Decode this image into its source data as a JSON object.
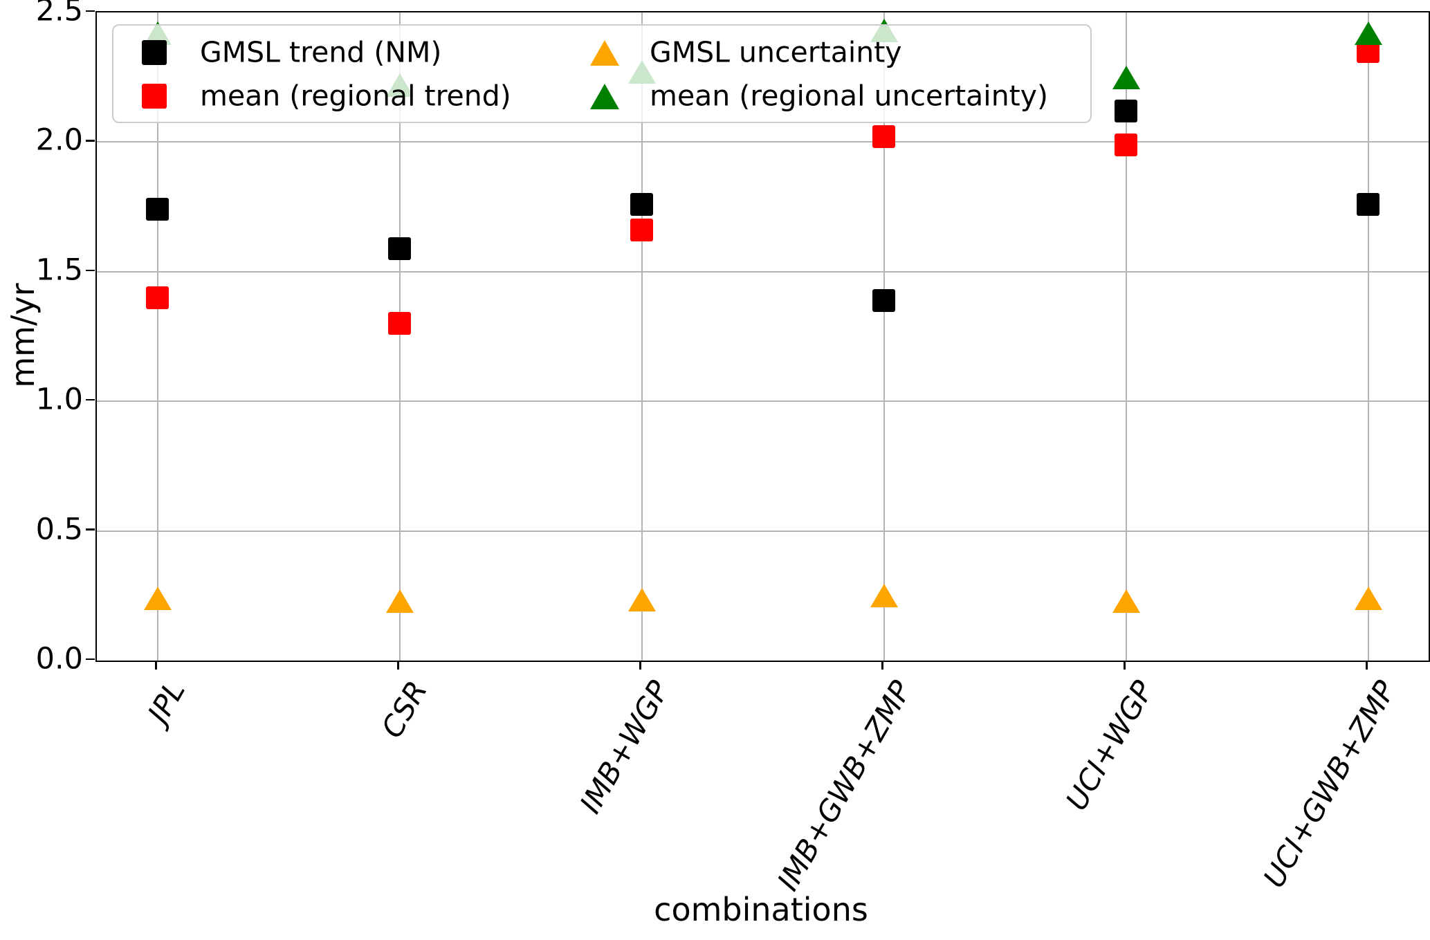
{
  "chart_data": {
    "type": "scatter",
    "xlabel": "combinations",
    "ylabel": "mm/yr",
    "ylim": [
      0.0,
      2.5
    ],
    "yticks": [
      0.0,
      0.5,
      1.0,
      1.5,
      2.0,
      2.5
    ],
    "grid": true,
    "legend_position": "upper left",
    "legend_columns": 2,
    "categories": [
      "JPL",
      "CSR",
      "IMB+WGP",
      "IMB+GWB+ZMP",
      "UCI+WGP",
      "UCI+GWB+ZMP"
    ],
    "series": [
      {
        "name": "GMSL trend (NM)",
        "marker": "square",
        "color": "#000000",
        "values": [
          1.74,
          1.59,
          1.76,
          1.39,
          2.12,
          1.76
        ]
      },
      {
        "name": "mean (regional trend)",
        "marker": "square",
        "color": "#ff0000",
        "values": [
          1.4,
          1.3,
          1.66,
          2.02,
          1.99,
          2.35
        ]
      },
      {
        "name": "GMSL uncertainty",
        "marker": "triangle",
        "color": "#ffa500",
        "values": [
          0.24,
          0.23,
          0.235,
          0.25,
          0.23,
          0.24
        ]
      },
      {
        "name": "mean (regional uncertainty)",
        "marker": "triangle",
        "color": "#008000",
        "values": [
          2.42,
          2.22,
          2.27,
          2.43,
          2.25,
          2.42
        ]
      }
    ]
  }
}
